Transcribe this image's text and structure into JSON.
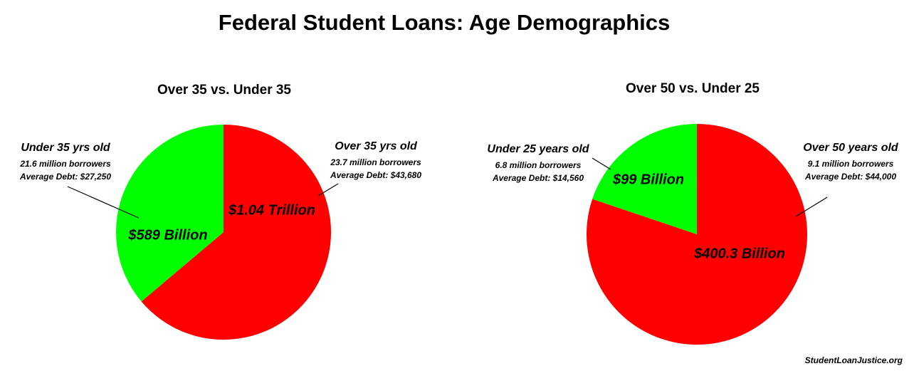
{
  "title": "Federal Student Loans: Age Demographics",
  "source": "StudentLoanJustice.org",
  "chart_data": [
    {
      "type": "pie",
      "title": "Over 35 vs. Under 35",
      "categories": [
        "Over 35 yrs old",
        "Under 35 yrs old"
      ],
      "values": [
        1040,
        589
      ],
      "value_labels": [
        "$1.04 Trillion",
        "$589 Billion"
      ],
      "colors": [
        "#ff0000",
        "#00ff00"
      ],
      "notes": [
        [
          "23.7 million borrowers",
          "Average Debt: $43,680"
        ],
        [
          "21.6 million borrowers",
          "Average Debt: $27,250"
        ]
      ]
    },
    {
      "type": "pie",
      "title": "Over 50 vs. Under 25",
      "categories": [
        "Over 50 years old",
        "Under 25 years old"
      ],
      "values": [
        400.3,
        99
      ],
      "value_labels": [
        "$400.3 Billion",
        "$99 Billion"
      ],
      "colors": [
        "#ff0000",
        "#00ff00"
      ],
      "notes": [
        [
          "9.1 million borrowers",
          "Average Debt: $44,000"
        ],
        [
          "6.8 million borrowers",
          "Average Debt: $14,560"
        ]
      ]
    }
  ]
}
